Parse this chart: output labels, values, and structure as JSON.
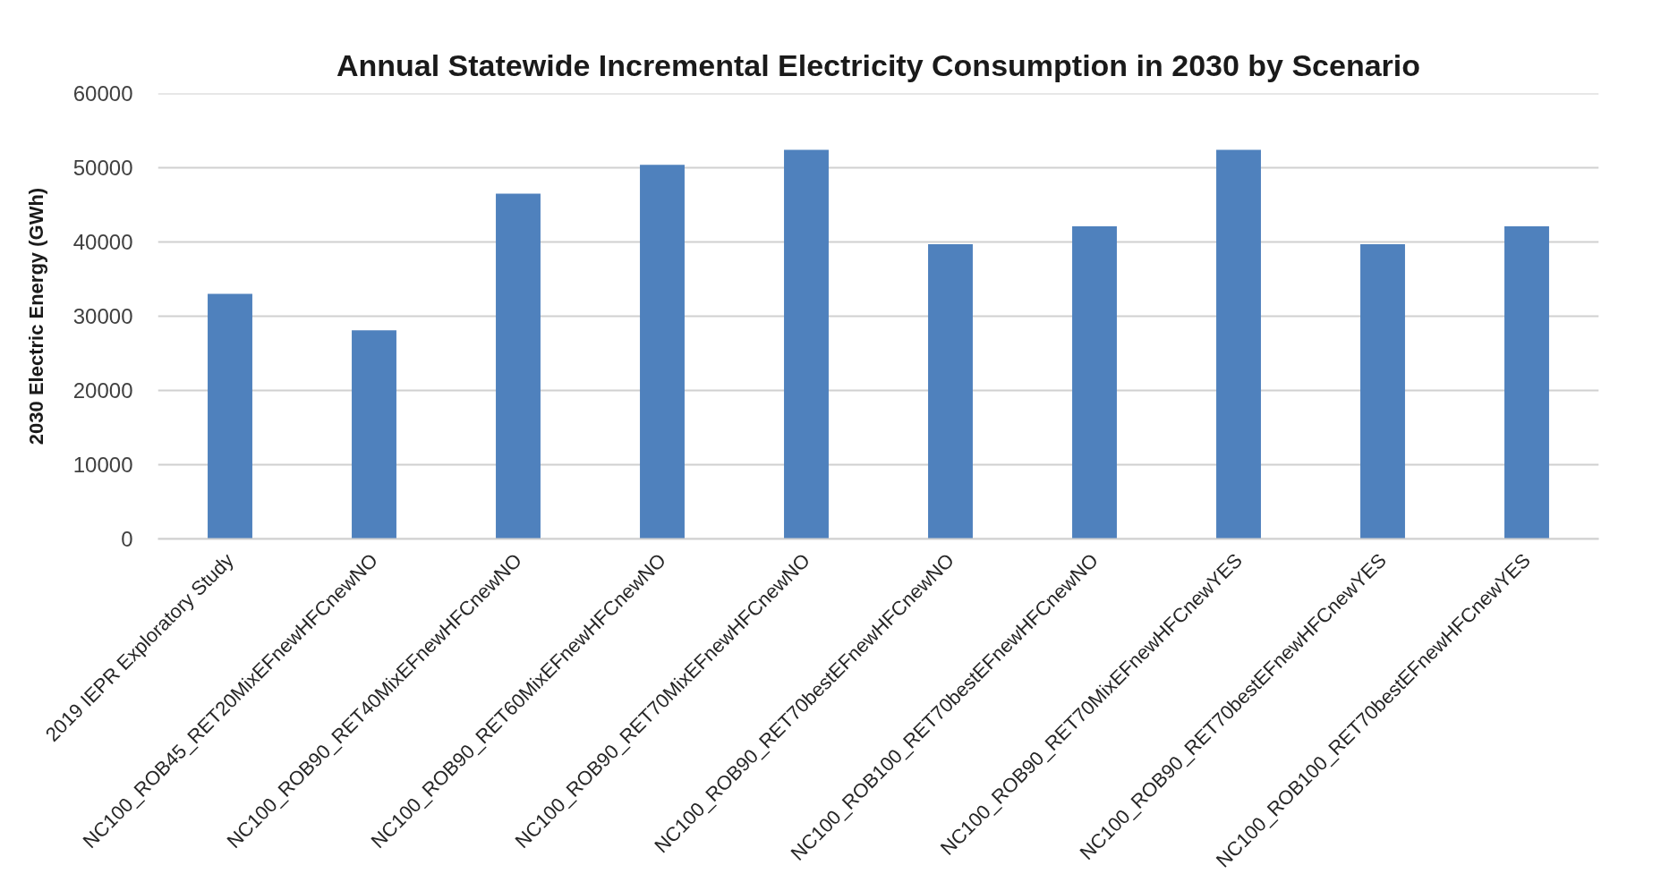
{
  "chart_data": {
    "type": "bar",
    "title": "Annual Statewide Incremental Electricity Consumption in 2030 by Scenario",
    "ylabel": "2030 Electric Energy (GWh)",
    "categories": [
      "2019 IEPR Exploratory Study",
      "NC100_ROB45_RET20MixEFnewHFCnewNO",
      "NC100_ROB90_RET40MixEFnewHFCnewNO",
      "NC100_ROB90_RET60MixEFnewHFCnewNO",
      "NC100_ROB90_RET70MixEFnewHFCnewNO",
      "NC100_ROB90_RET70bestEFnewHFCnewNO",
      "NC100_ROB100_RET70bestEFnewHFCnewNO",
      "NC100_ROB90_RET70MixEFnewHFCnewYES",
      "NC100_ROB90_RET70bestEFnewHFCnewYES",
      "NC100_ROB100_RET70bestEFnewHFCnewYES"
    ],
    "values": [
      33000,
      28100,
      46500,
      50400,
      52400,
      39700,
      42100,
      52400,
      39700,
      42100
    ],
    "color": "#4f81bd",
    "ylim": [
      0,
      60000
    ],
    "yticks": [
      0,
      10000,
      20000,
      30000,
      40000,
      50000,
      60000
    ],
    "grid": "y"
  }
}
